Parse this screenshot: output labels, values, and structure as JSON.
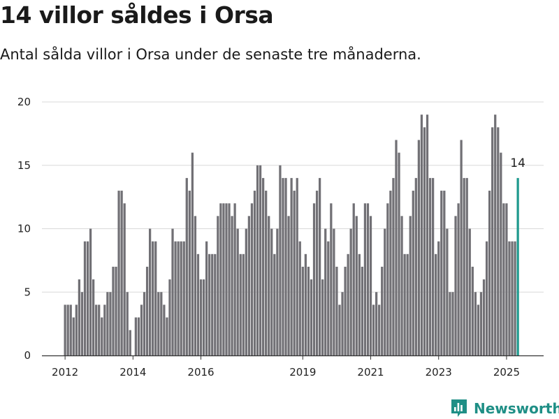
{
  "header": {
    "title": "14 villor såldes i Orsa",
    "subtitle": "Antal sålda villor i Orsa under de senaste tre månaderna."
  },
  "brand": {
    "name": "Newsworthy",
    "color": "#1f8f86"
  },
  "chart_data": {
    "type": "bar",
    "ylim": [
      0,
      20
    ],
    "y_ticks": [
      "0",
      "5",
      "10",
      "15",
      "20"
    ],
    "x_ticks": [
      {
        "label": "2012",
        "index": 0
      },
      {
        "label": "2014",
        "index": 24
      },
      {
        "label": "2016",
        "index": 48
      },
      {
        "label": "2019",
        "index": 84
      },
      {
        "label": "2021",
        "index": 108
      },
      {
        "label": "2023",
        "index": 132
      },
      {
        "label": "2025",
        "index": 156
      }
    ],
    "values": [
      4,
      4,
      4,
      3,
      4,
      6,
      5,
      9,
      9,
      10,
      6,
      4,
      4,
      3,
      4,
      5,
      5,
      7,
      7,
      13,
      13,
      12,
      5,
      2,
      0,
      3,
      3,
      4,
      5,
      7,
      10,
      9,
      9,
      5,
      5,
      4,
      3,
      6,
      10,
      9,
      9,
      9,
      9,
      14,
      13,
      16,
      11,
      8,
      6,
      6,
      9,
      8,
      8,
      8,
      11,
      12,
      12,
      12,
      12,
      11,
      12,
      10,
      8,
      8,
      10,
      11,
      12,
      13,
      15,
      15,
      14,
      13,
      11,
      10,
      8,
      10,
      15,
      14,
      14,
      11,
      14,
      13,
      14,
      9,
      7,
      8,
      7,
      6,
      12,
      13,
      14,
      6,
      10,
      9,
      12,
      10,
      7,
      4,
      5,
      7,
      8,
      10,
      12,
      11,
      8,
      7,
      12,
      12,
      11,
      4,
      5,
      4,
      7,
      10,
      12,
      13,
      14,
      17,
      16,
      11,
      8,
      8,
      11,
      13,
      14,
      17,
      19,
      18,
      19,
      14,
      14,
      8,
      9,
      13,
      13,
      10,
      5,
      5,
      11,
      12,
      17,
      14,
      14,
      10,
      7,
      5,
      4,
      5,
      6,
      9,
      13,
      18,
      19,
      18,
      16,
      12,
      12,
      9,
      9,
      9,
      14
    ],
    "highlight_index": 160,
    "highlight_label": "14",
    "bar_color": "#717075",
    "highlight_color": "#1f9a8e",
    "grid": true
  }
}
